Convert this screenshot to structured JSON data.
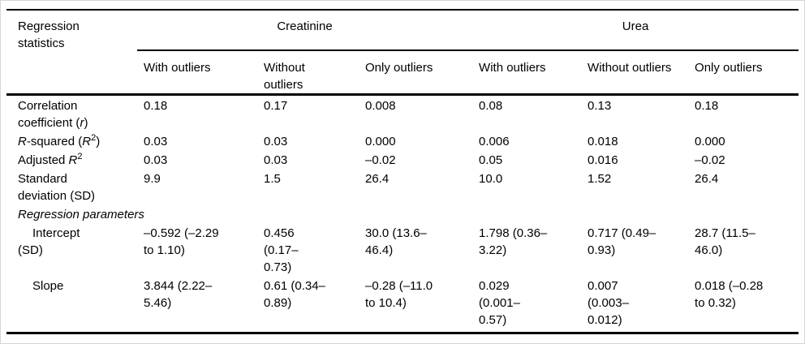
{
  "colors": {
    "background": "#ffffff",
    "text": "#000000",
    "rules": "#000000",
    "frame_border": "#d6d6d6"
  },
  "table": {
    "corner_label": "Regression\nstatistics",
    "groups": [
      {
        "label": "Creatinine"
      },
      {
        "label": "Urea"
      }
    ],
    "subheaders": [
      "With outliers",
      "Without\noutliers",
      "Only outliers",
      "With outliers",
      "Without outliers",
      "Only outliers"
    ],
    "rows": [
      {
        "label_html": "Correlation\ncoefficient (<i>r</i>)",
        "cells": [
          "0.18",
          "0.17",
          "0.008",
          "0.08",
          "0.13",
          "0.18"
        ]
      },
      {
        "label_html": "<i>R</i>-squared (<i>R</i><sup>2</sup>)",
        "cells": [
          "0.03",
          "0.03",
          "0.000",
          "0.006",
          "0.018",
          "0.000"
        ]
      },
      {
        "label_html": "Adjusted <i>R</i><sup>2</sup>",
        "cells": [
          "0.03",
          "0.03",
          "–0.02",
          "0.05",
          "0.016",
          "–0.02"
        ]
      },
      {
        "label_html": "Standard\ndeviation (SD)",
        "cells": [
          "9.9",
          "1.5",
          "26.4",
          "10.0",
          "1.52",
          "26.4"
        ]
      },
      {
        "section_label": "Regression parameters"
      },
      {
        "label_html": "Intercept\n(SD)",
        "cells": [
          "–0.592 (–2.29\nto 1.10)",
          "0.456\n(0.17–\n0.73)",
          "30.0 (13.6–\n46.4)",
          "1.798 (0.36–\n3.22)",
          "0.717 (0.49–\n0.93)",
          "28.7 (11.5–\n46.0)"
        ]
      },
      {
        "label_html": "Slope",
        "cells": [
          "3.844 (2.22–\n5.46)",
          "0.61 (0.34–\n0.89)",
          "–0.28 (–11.0\nto 10.4)",
          "0.029\n(0.001–\n0.57)",
          "0.007\n(0.003–\n0.012)",
          "0.018 (–0.28\nto 0.32)"
        ]
      }
    ]
  }
}
